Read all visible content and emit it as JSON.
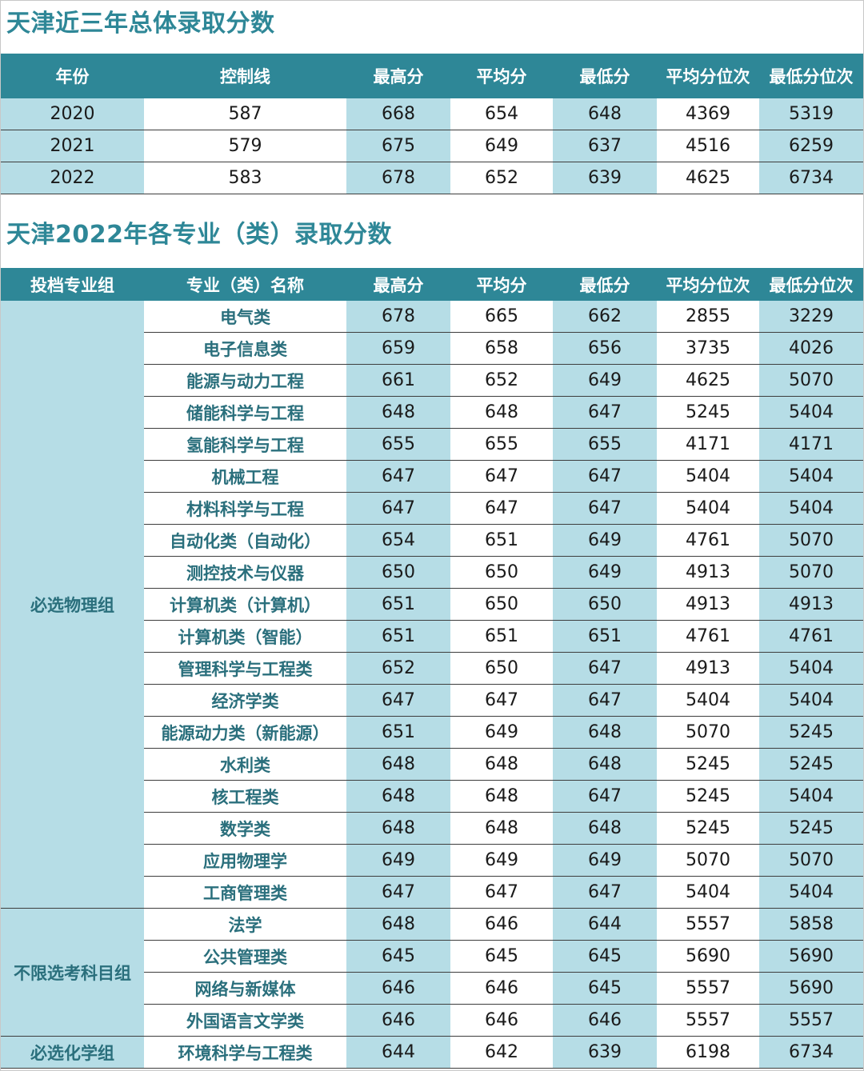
{
  "section1": {
    "title": "天津近三年总体录取分数",
    "headers": [
      "年份",
      "控制线",
      "最高分",
      "平均分",
      "最低分",
      "平均分位次",
      "最低分位次"
    ],
    "rows": [
      [
        "2020",
        "587",
        "668",
        "654",
        "648",
        "4369",
        "5319"
      ],
      [
        "2021",
        "579",
        "675",
        "649",
        "637",
        "4516",
        "6259"
      ],
      [
        "2022",
        "583",
        "678",
        "652",
        "639",
        "4625",
        "6734"
      ]
    ]
  },
  "section2": {
    "title": "天津2022年各专业（类）录取分数",
    "headers": [
      "投档专业组",
      "专业（类）名称",
      "最高分",
      "平均分",
      "最低分",
      "平均分位次",
      "最低分位次"
    ],
    "groups": [
      {
        "name": "必选物理组",
        "rows": [
          [
            "电气类",
            "678",
            "665",
            "662",
            "2855",
            "3229"
          ],
          [
            "电子信息类",
            "659",
            "658",
            "656",
            "3735",
            "4026"
          ],
          [
            "能源与动力工程",
            "661",
            "652",
            "649",
            "4625",
            "5070"
          ],
          [
            "储能科学与工程",
            "648",
            "648",
            "647",
            "5245",
            "5404"
          ],
          [
            "氢能科学与工程",
            "655",
            "655",
            "655",
            "4171",
            "4171"
          ],
          [
            "机械工程",
            "647",
            "647",
            "647",
            "5404",
            "5404"
          ],
          [
            "材料科学与工程",
            "647",
            "647",
            "647",
            "5404",
            "5404"
          ],
          [
            "自动化类（自动化）",
            "654",
            "651",
            "649",
            "4761",
            "5070"
          ],
          [
            "测控技术与仪器",
            "650",
            "650",
            "649",
            "4913",
            "5070"
          ],
          [
            "计算机类（计算机）",
            "651",
            "650",
            "650",
            "4913",
            "4913"
          ],
          [
            "计算机类（智能）",
            "651",
            "651",
            "651",
            "4761",
            "4761"
          ],
          [
            "管理科学与工程类",
            "652",
            "650",
            "647",
            "4913",
            "5404"
          ],
          [
            "经济学类",
            "647",
            "647",
            "647",
            "5404",
            "5404"
          ],
          [
            "能源动力类（新能源）",
            "651",
            "649",
            "648",
            "5070",
            "5245"
          ],
          [
            "水利类",
            "648",
            "648",
            "648",
            "5245",
            "5245"
          ],
          [
            "核工程类",
            "648",
            "648",
            "647",
            "5245",
            "5404"
          ],
          [
            "数学类",
            "648",
            "648",
            "648",
            "5245",
            "5245"
          ],
          [
            "应用物理学",
            "649",
            "649",
            "649",
            "5070",
            "5070"
          ],
          [
            "工商管理类",
            "647",
            "647",
            "647",
            "5404",
            "5404"
          ]
        ]
      },
      {
        "name": "不限选考科目组",
        "rows": [
          [
            "法学",
            "648",
            "646",
            "644",
            "5557",
            "5858"
          ],
          [
            "公共管理类",
            "645",
            "645",
            "645",
            "5690",
            "5690"
          ],
          [
            "网络与新媒体",
            "646",
            "646",
            "645",
            "5557",
            "5690"
          ],
          [
            "外国语言文学类",
            "646",
            "646",
            "646",
            "5557",
            "5557"
          ]
        ]
      },
      {
        "name": "必选化学组",
        "rows": [
          [
            "环境科学与工程类",
            "644",
            "642",
            "639",
            "6198",
            "6734"
          ]
        ]
      }
    ]
  }
}
